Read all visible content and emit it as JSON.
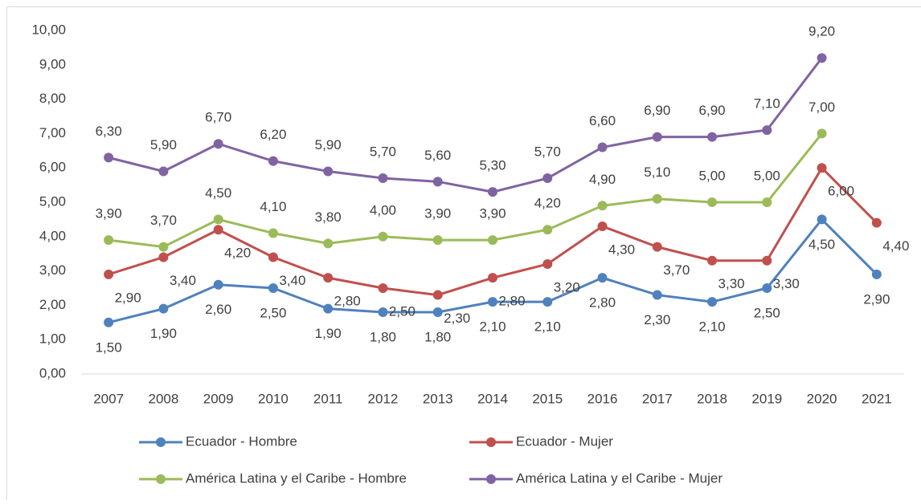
{
  "chart_data": {
    "type": "line",
    "categories": [
      "2007",
      "2008",
      "2009",
      "2010",
      "2011",
      "2012",
      "2013",
      "2014",
      "2015",
      "2016",
      "2017",
      "2018",
      "2019",
      "2020",
      "2021"
    ],
    "series": [
      {
        "name": "Ecuador - Hombre",
        "color": "#4f81bd",
        "values": [
          1.5,
          1.9,
          2.6,
          2.5,
          1.9,
          1.8,
          1.8,
          2.1,
          2.1,
          2.8,
          2.3,
          2.1,
          2.5,
          4.5,
          2.9
        ],
        "value_labels": [
          "1,50",
          "1,90",
          "2,60",
          "2,50",
          "1,90",
          "1,80",
          "1,80",
          "2,10",
          "2,10",
          "2,80",
          "2,30",
          "2,10",
          "2,50",
          "4,50",
          "2,90"
        ]
      },
      {
        "name": "Ecuador - Mujer",
        "color": "#c0504d",
        "values": [
          2.9,
          3.4,
          4.2,
          3.4,
          2.8,
          2.5,
          2.3,
          2.8,
          3.2,
          4.3,
          3.7,
          3.3,
          3.3,
          6.0,
          4.4
        ],
        "value_labels": [
          "2,90",
          "3,40",
          "4,20",
          "3,40",
          "2,80",
          "2,50",
          "2,30",
          "2,80",
          "3,20",
          "4,30",
          "3,70",
          "3,30",
          "3,30",
          "6,00",
          "4,40"
        ]
      },
      {
        "name": "América Latina y el Caribe - Hombre",
        "color": "#9bbb59",
        "values": [
          3.9,
          3.7,
          4.5,
          4.1,
          3.8,
          4.0,
          3.9,
          3.9,
          4.2,
          4.9,
          5.1,
          5.0,
          5.0,
          7.0,
          null
        ],
        "value_labels": [
          "3,90",
          "3,70",
          "4,50",
          "4,10",
          "3,80",
          "4,00",
          "3,90",
          "3,90",
          "4,20",
          "4,90",
          "5,10",
          "5,00",
          "5,00",
          "7,00",
          null
        ]
      },
      {
        "name": "América Latina y el Caribe - Mujer",
        "color": "#8064a2",
        "values": [
          6.3,
          5.9,
          6.7,
          6.2,
          5.9,
          5.7,
          5.6,
          5.3,
          5.7,
          6.6,
          6.9,
          6.9,
          7.1,
          9.2,
          null
        ],
        "value_labels": [
          "6,30",
          "5,90",
          "6,70",
          "6,20",
          "5,90",
          "5,70",
          "5,60",
          "5,30",
          "5,70",
          "6,60",
          "6,90",
          "6,90",
          "7,10",
          "9,20",
          null
        ]
      }
    ],
    "ylim": [
      0,
      10
    ],
    "yticks": [
      {
        "value": 0,
        "label": "0,00"
      },
      {
        "value": 1,
        "label": "1,00"
      },
      {
        "value": 2,
        "label": "2,00"
      },
      {
        "value": 3,
        "label": "3,00"
      },
      {
        "value": 4,
        "label": "4,00"
      },
      {
        "value": 5,
        "label": "5,00"
      },
      {
        "value": 6,
        "label": "6,00"
      },
      {
        "value": 7,
        "label": "7,00"
      },
      {
        "value": 8,
        "label": "8,00"
      },
      {
        "value": 9,
        "label": "9,00"
      },
      {
        "value": 10,
        "label": "10,00"
      }
    ],
    "grid": false,
    "legend": "bottom"
  }
}
